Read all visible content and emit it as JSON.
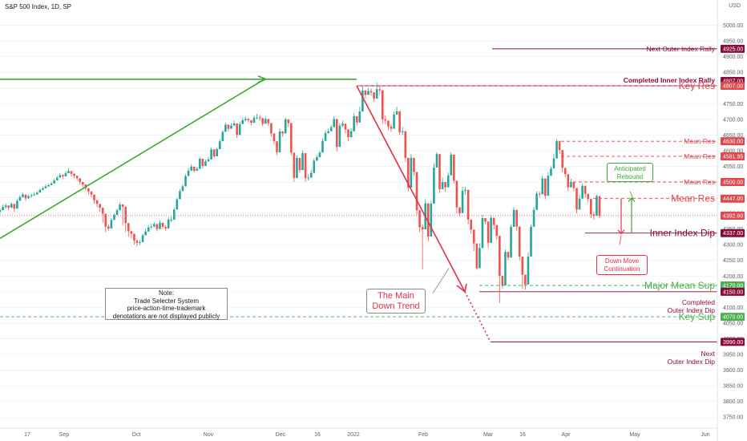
{
  "header": {
    "title": "S&P 500 Index, 1D, SP"
  },
  "currency": "USD",
  "colors": {
    "up": "#26a69a",
    "down": "#ef5350",
    "res": "#e0484c",
    "sup": "#4caf50",
    "target": "#8b0c3b",
    "trend_up": "#3aaa35",
    "trend_down": "#e0324a",
    "grid": "#f0f3fa"
  },
  "chart_data": {
    "type": "candlestick",
    "y_axis": {
      "min": 3730,
      "max": 5050,
      "ticks": [
        3750,
        3800,
        3850,
        3900,
        3950,
        4000,
        4050,
        4100,
        4150,
        4200,
        4250,
        4300,
        4350,
        4400,
        4450,
        4500,
        4550,
        4600,
        4650,
        4700,
        4750,
        4800,
        4850,
        4900,
        4950,
        5000
      ]
    },
    "x_axis": {
      "labels": [
        "17",
        "Sep",
        "Oct",
        "Nov",
        "Dec",
        "16",
        "2022",
        "Feb",
        "Mar",
        "16",
        "Apr",
        "May",
        "Jun"
      ]
    },
    "closes": [
      4410,
      4420,
      4425,
      4418,
      4430,
      4415,
      4440,
      4452,
      4460,
      4448,
      4455,
      4458,
      4460,
      4466,
      4475,
      4480,
      4486,
      4490,
      4495,
      4505,
      4514,
      4522,
      4518,
      4528,
      4535,
      4526,
      4520,
      4512,
      4500,
      4492,
      4480,
      4470,
      4460,
      4442,
      4430,
      4418,
      4399,
      4358,
      4352,
      4379,
      4395,
      4410,
      4428,
      4421,
      4369,
      4343,
      4335,
      4313,
      4306,
      4308,
      4330,
      4342,
      4355,
      4358,
      4366,
      4350,
      4370,
      4357,
      4352,
      4380,
      4380,
      4412,
      4445,
      4471,
      4486,
      4519,
      4536,
      4549,
      4536,
      4542,
      4574,
      4551,
      4566,
      4572,
      4604,
      4582,
      4605,
      4630,
      4660,
      4683,
      4670,
      4680,
      4687,
      4650,
      4685,
      4697,
      4701,
      4697,
      4689,
      4705,
      4706,
      4704,
      4686,
      4701,
      4688,
      4655,
      4630,
      4595,
      4661,
      4655,
      4700,
      4688,
      4594,
      4513,
      4577,
      4538,
      4592,
      4513,
      4514,
      4529,
      4568,
      4579,
      4594,
      4631,
      4656,
      4662,
      4675,
      4701,
      4612,
      4680,
      4686,
      4668,
      4643,
      4662,
      4710,
      4690,
      4725,
      4792,
      4778,
      4790,
      4786,
      4766,
      4796,
      4793,
      4700,
      4696,
      4677,
      4670,
      4715,
      4726,
      4659,
      4662,
      4577,
      4482,
      4577,
      4532,
      4410,
      4356,
      4349,
      4432,
      4326,
      4431,
      4546,
      4589,
      4477,
      4500,
      4483,
      4521,
      4587,
      4504,
      4419,
      4401,
      4472,
      4475,
      4380,
      4348,
      4304,
      4225,
      4289,
      4385,
      4374,
      4306,
      4386,
      4363,
      4328,
      4201,
      4170,
      4277,
      4259,
      4357,
      4411,
      4358,
      4262,
      4204,
      4173,
      4262,
      4357,
      4411,
      4463,
      4461,
      4511,
      4456,
      4520,
      4543,
      4575,
      4631,
      4602,
      4545,
      4525,
      4483,
      4500,
      4481,
      4412,
      4447,
      4488,
      4462,
      4446,
      4397,
      4392,
      4455,
      4392
    ],
    "highs": [
      4415,
      4428,
      4432,
      4425,
      4435,
      4422,
      4445,
      4458,
      4465,
      4455,
      4460,
      4463,
      4468,
      4471,
      4480,
      4486,
      4492,
      4495,
      4500,
      4510,
      4519,
      4528,
      4525,
      4535,
      4545,
      4535,
      4528,
      4520,
      4510,
      4500,
      4490,
      4478,
      4470,
      4450,
      4440,
      4425,
      4410,
      4370,
      4365,
      4385,
      4400,
      4415,
      4435,
      4430,
      4380,
      4355,
      4345,
      4325,
      4318,
      4315,
      4335,
      4350,
      4362,
      4368,
      4372,
      4360,
      4378,
      4365,
      4362,
      4388,
      4390,
      4418,
      4450,
      4478,
      4492,
      4525,
      4545,
      4556,
      4545,
      4548,
      4580,
      4560,
      4572,
      4580,
      4610,
      4592,
      4610,
      4636,
      4665,
      4690,
      4680,
      4688,
      4695,
      4662,
      4692,
      4705,
      4710,
      4705,
      4698,
      4712,
      4718,
      4714,
      4695,
      4708,
      4698,
      4666,
      4640,
      4610,
      4670,
      4663,
      4706,
      4698,
      4612,
      4530,
      4585,
      4552,
      4600,
      4530,
      4525,
      4538,
      4575,
      4585,
      4600,
      4640,
      4665,
      4670,
      4682,
      4710,
      4620,
      4688,
      4695,
      4680,
      4655,
      4672,
      4720,
      4700,
      4740,
      4805,
      4790,
      4800,
      4799,
      4780,
      4818,
      4808,
      4730,
      4712,
      4695,
      4685,
      4725,
      4740,
      4670,
      4675,
      4590,
      4500,
      4590,
      4560,
      4455,
      4405,
      4365,
      4445,
      4345,
      4440,
      4560,
      4595,
      4495,
      4515,
      4500,
      4530,
      4595,
      4530,
      4428,
      4420,
      4485,
      4485,
      4400,
      4370,
      4325,
      4245,
      4305,
      4395,
      4385,
      4320,
      4395,
      4375,
      4340,
      4230,
      4185,
      4285,
      4270,
      4365,
      4420,
      4370,
      4280,
      4225,
      4190,
      4275,
      4365,
      4420,
      4470,
      4470,
      4520,
      4470,
      4530,
      4550,
      4590,
      4637,
      4612,
      4560,
      4535,
      4495,
      4510,
      4495,
      4425,
      4460,
      4495,
      4475,
      4460,
      4410,
      4405,
      4460,
      4400
    ],
    "lows": [
      4400,
      4410,
      4415,
      4410,
      4420,
      4405,
      4430,
      4442,
      4450,
      4440,
      4445,
      4450,
      4455,
      4460,
      4468,
      4474,
      4480,
      4485,
      4490,
      4498,
      4506,
      4514,
      4510,
      4520,
      4528,
      4518,
      4512,
      4505,
      4492,
      4484,
      4472,
      4460,
      4450,
      4432,
      4420,
      4405,
      4370,
      4340,
      4345,
      4370,
      4388,
      4402,
      4420,
      4362,
      4340,
      4325,
      4320,
      4300,
      4295,
      4298,
      4322,
      4335,
      4348,
      4350,
      4355,
      4343,
      4356,
      4350,
      4345,
      4370,
      4372,
      4405,
      4438,
      4464,
      4480,
      4510,
      4528,
      4540,
      4530,
      4535,
      4565,
      4544,
      4558,
      4565,
      4595,
      4575,
      4598,
      4622,
      4652,
      4675,
      4662,
      4672,
      4680,
      4640,
      4675,
      4690,
      4693,
      4690,
      4680,
      4696,
      4700,
      4695,
      4678,
      4690,
      4680,
      4645,
      4620,
      4585,
      4650,
      4645,
      4690,
      4675,
      4585,
      4500,
      4565,
      4530,
      4582,
      4500,
      4505,
      4520,
      4558,
      4570,
      4585,
      4620,
      4648,
      4655,
      4668,
      4690,
      4598,
      4670,
      4675,
      4655,
      4630,
      4650,
      4700,
      4680,
      4715,
      4780,
      4765,
      4780,
      4775,
      4755,
      4785,
      4780,
      4685,
      4685,
      4665,
      4660,
      4705,
      4715,
      4650,
      4650,
      4565,
      4470,
      4565,
      4520,
      4395,
      4340,
      4222,
      4420,
      4310,
      4420,
      4535,
      4575,
      4465,
      4490,
      4470,
      4510,
      4575,
      4495,
      4400,
      4390,
      4460,
      4460,
      4365,
      4335,
      4280,
      4220,
      4280,
      4375,
      4365,
      4290,
      4375,
      4350,
      4315,
      4114,
      4160,
      4265,
      4250,
      4345,
      4400,
      4345,
      4250,
      4160,
      4157,
      4250,
      4345,
      4400,
      4455,
      4450,
      4500,
      4445,
      4510,
      4535,
      4565,
      4620,
      4590,
      4530,
      4515,
      4470,
      4490,
      4470,
      4400,
      4435,
      4480,
      4450,
      4435,
      4385,
      4380,
      4440,
      4385
    ]
  },
  "levels": [
    {
      "price": 4925.0,
      "label": "Next Outer Index Rally",
      "box": "4925.00",
      "color": "#8b0c3b",
      "style": "solid"
    },
    {
      "price": 4807.0,
      "label": "Completed Inner Index Rally",
      "box": "4807.00",
      "color": "#8b0c3b",
      "style": "solid"
    },
    {
      "price": 4807.0,
      "label": "Key Res",
      "box": "4807.00",
      "color": "#e0484c",
      "style": "dashed"
    },
    {
      "price": 4630.0,
      "label": "Mean Res",
      "box": "4630.00",
      "color": "#e0484c",
      "style": "dashed"
    },
    {
      "price": 4581.95,
      "label": "Mean Res",
      "box": "4581.95",
      "color": "#e0484c",
      "style": "dashed"
    },
    {
      "price": 4500.0,
      "label": "Mean Res",
      "box": "4500.00",
      "color": "#e0484c",
      "style": "dashed"
    },
    {
      "price": 4447.0,
      "label": "Mean Res",
      "box": "4447.00",
      "color": "#e0484c",
      "style": "dashed"
    },
    {
      "price": 4392.6,
      "label": "",
      "box": "4392.60",
      "color": "#e0484c",
      "style": "dotted"
    },
    {
      "price": 4337.0,
      "label": "Inner Index Dip",
      "box": "4337.00",
      "color": "#8b0c3b",
      "style": "solid"
    },
    {
      "price": 4170.0,
      "label": "Major Mean Sup",
      "box": "4170.00",
      "color": "#4caf50",
      "style": "dashed"
    },
    {
      "price": 4150.0,
      "label": "Completed Outer Index Dip",
      "box": "4150.00",
      "color": "#8b0c3b",
      "style": "solid"
    },
    {
      "price": 4070.0,
      "label": "Key Sup",
      "box": "4070.00",
      "color": "#4caf50",
      "style": "dashed"
    },
    {
      "price": 3990.0,
      "label": "Next Outer Index Dip",
      "box": "3990.00",
      "color": "#8b0c3b",
      "style": "solid"
    }
  ],
  "annotations": {
    "note_title": "Note:",
    "note_lines": [
      "Trade Selecter System",
      "price-action-time-trademark",
      "denotations are not displayed publicly"
    ],
    "main_trend": [
      "The Main",
      "Down Trend"
    ],
    "rebound": [
      "Anticipated",
      "Rebound"
    ],
    "continuation": [
      "Down Move",
      "Continuation"
    ],
    "completed_outer": [
      "Completed",
      "Outer Index Dip"
    ],
    "next_outer": [
      "Next",
      "Outer Index Dip"
    ]
  }
}
